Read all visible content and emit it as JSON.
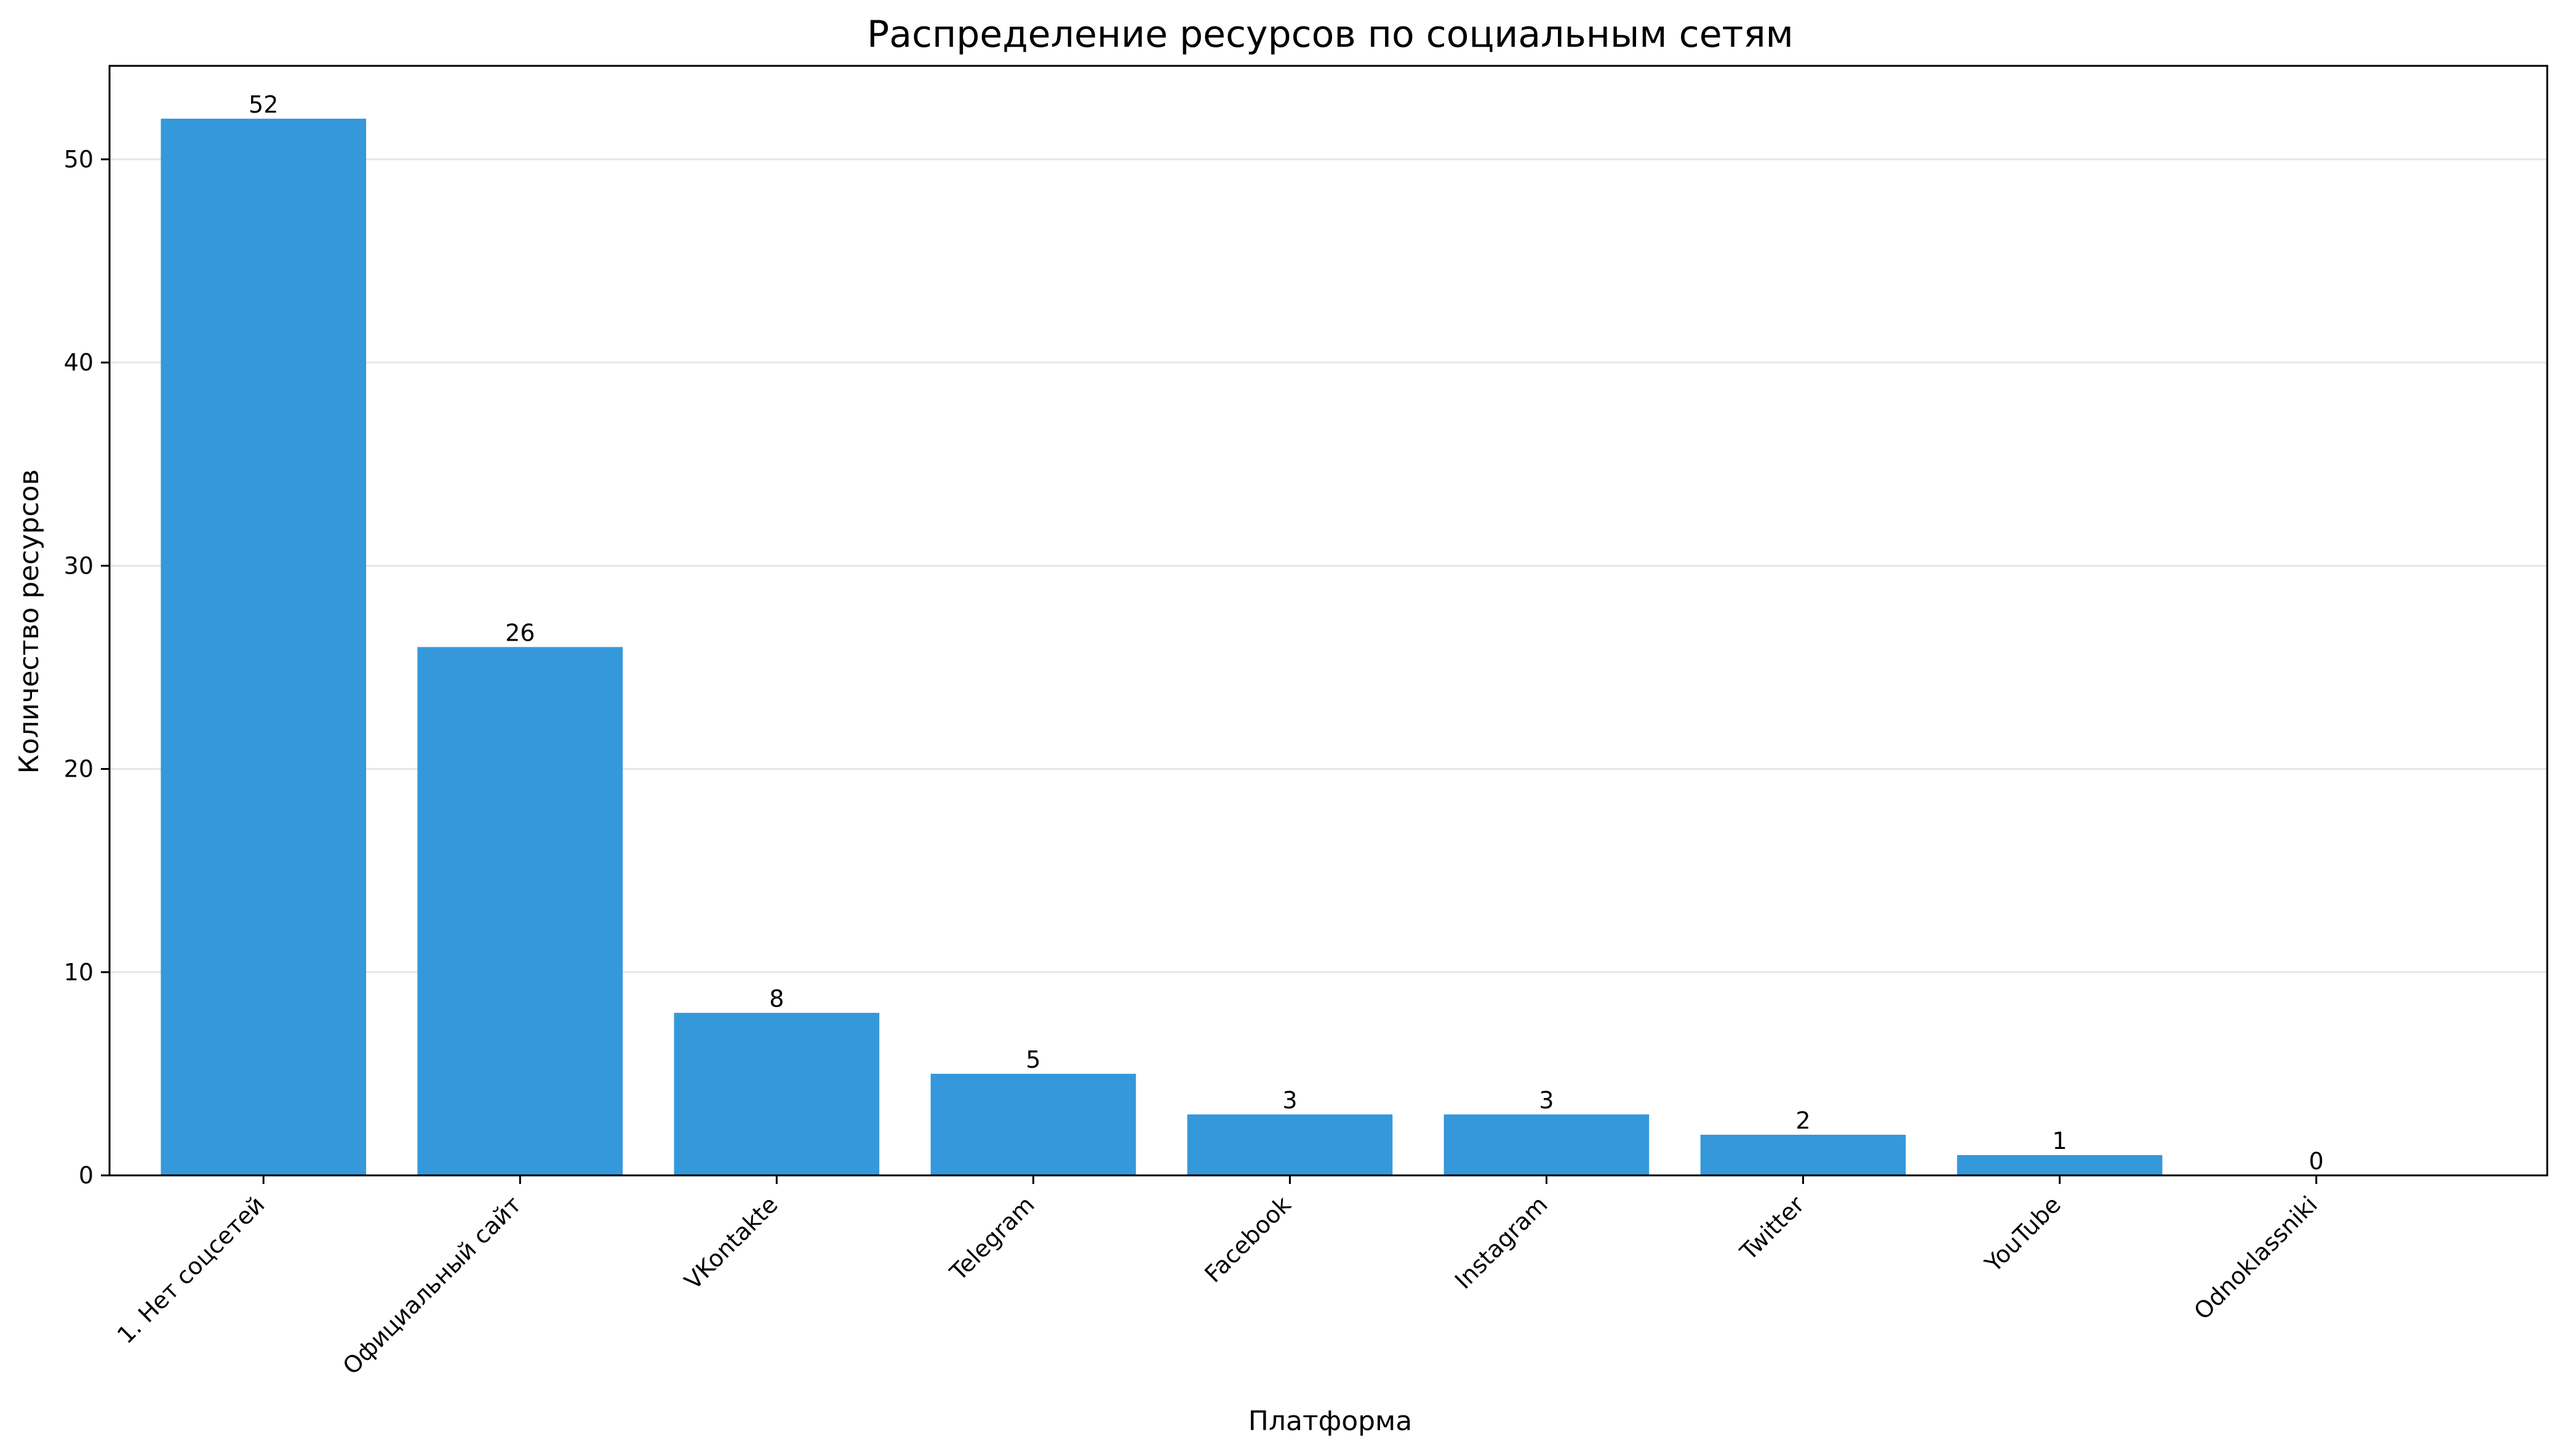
{
  "chart_data": {
    "type": "bar",
    "title": "Распределение ресурсов по социальным сетям",
    "xlabel": "Платформа",
    "ylabel": "Количество ресурсов",
    "categories": [
      "1. Нет соцсетей",
      "Официальный сайт",
      "VKontakte",
      "Telegram",
      "Facebook",
      "Instagram",
      "Twitter",
      "YouTube",
      "Odnoklassniki"
    ],
    "values": [
      52,
      26,
      8,
      5,
      3,
      3,
      2,
      1,
      0
    ],
    "ylim": [
      0,
      54.6
    ],
    "yticks": [
      0,
      10,
      20,
      30,
      40,
      50
    ],
    "grid": "horizontal",
    "bar_color": "#3498db"
  }
}
